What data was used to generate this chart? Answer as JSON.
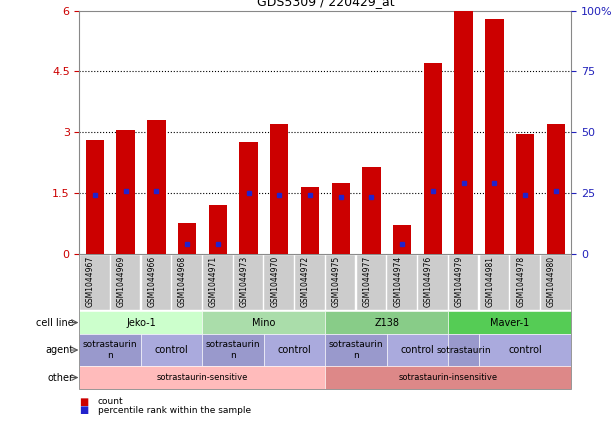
{
  "title": "GDS5309 / 220429_at",
  "samples": [
    "GSM1044967",
    "GSM1044969",
    "GSM1044966",
    "GSM1044968",
    "GSM1044971",
    "GSM1044973",
    "GSM1044970",
    "GSM1044972",
    "GSM1044975",
    "GSM1044977",
    "GSM1044974",
    "GSM1044976",
    "GSM1044979",
    "GSM1044981",
    "GSM1044978",
    "GSM1044980"
  ],
  "bar_values": [
    2.8,
    3.05,
    3.3,
    0.75,
    1.2,
    2.75,
    3.2,
    1.65,
    1.75,
    2.15,
    0.7,
    4.7,
    6.0,
    5.8,
    2.95,
    3.2
  ],
  "blue_values": [
    1.45,
    1.55,
    1.55,
    0.25,
    0.25,
    1.5,
    1.45,
    1.45,
    1.4,
    1.4,
    0.25,
    1.55,
    1.75,
    1.75,
    1.45,
    1.55
  ],
  "bar_color": "#cc0000",
  "blue_color": "#2222cc",
  "ylim_left": [
    0,
    6
  ],
  "ylim_right": [
    0,
    100
  ],
  "yticks_left": [
    0,
    1.5,
    3.0,
    4.5,
    6.0
  ],
  "ytick_labels_left": [
    "0",
    "1.5",
    "3",
    "4.5",
    "6"
  ],
  "yticks_right": [
    0,
    25,
    50,
    75,
    100
  ],
  "ytick_labels_right": [
    "0",
    "25",
    "50",
    "75",
    "100%"
  ],
  "dotted_lines": [
    1.5,
    3.0,
    4.5
  ],
  "cell_line_groups": [
    {
      "text": "Jeko-1",
      "start": 0,
      "end": 3,
      "color": "#ccffcc"
    },
    {
      "text": "Mino",
      "start": 4,
      "end": 7,
      "color": "#aaddaa"
    },
    {
      "text": "Z138",
      "start": 8,
      "end": 11,
      "color": "#88cc88"
    },
    {
      "text": "Maver-1",
      "start": 12,
      "end": 15,
      "color": "#55cc55"
    }
  ],
  "agent_groups": [
    {
      "text": "sotrastaurin\nn",
      "start": 0,
      "end": 1,
      "color": "#9999cc"
    },
    {
      "text": "control",
      "start": 2,
      "end": 3,
      "color": "#aaaadd"
    },
    {
      "text": "sotrastaurin\nn",
      "start": 4,
      "end": 5,
      "color": "#9999cc"
    },
    {
      "text": "control",
      "start": 6,
      "end": 7,
      "color": "#aaaadd"
    },
    {
      "text": "sotrastaurin\nn",
      "start": 8,
      "end": 9,
      "color": "#9999cc"
    },
    {
      "text": "control",
      "start": 10,
      "end": 11,
      "color": "#aaaadd"
    },
    {
      "text": "sotrastaurin",
      "start": 12,
      "end": 12,
      "color": "#9999cc"
    },
    {
      "text": "control",
      "start": 13,
      "end": 15,
      "color": "#aaaadd"
    }
  ],
  "other_groups": [
    {
      "text": "sotrastaurin-sensitive",
      "start": 0,
      "end": 7,
      "color": "#ffbbbb"
    },
    {
      "text": "sotrastaurin-insensitive",
      "start": 8,
      "end": 15,
      "color": "#dd8888"
    }
  ],
  "row_labels": [
    "cell line",
    "agent",
    "other"
  ],
  "legend_items": [
    {
      "color": "#cc0000",
      "label": "count"
    },
    {
      "color": "#2222cc",
      "label": "percentile rank within the sample"
    }
  ],
  "bar_width": 0.6,
  "background_color": "#ffffff",
  "tick_label_color_left": "#cc0000",
  "tick_label_color_right": "#2222bb",
  "xtick_bg_color": "#cccccc",
  "border_color": "#888888"
}
